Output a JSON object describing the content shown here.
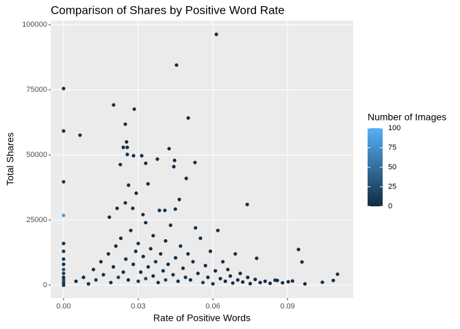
{
  "chart_data": {
    "type": "scatter",
    "title": "Comparison of Shares by Positive Word Rate",
    "x_label": "Rate of Positive Words",
    "y_label": "Total Shares",
    "xlim": [
      -0.0052,
      0.1164
    ],
    "ylim": [
      -5000,
      101600
    ],
    "xticks": [
      {
        "value": 0,
        "label": "0.00"
      },
      {
        "value": 0.03,
        "label": "0.03"
      },
      {
        "value": 0.06,
        "label": "0.06"
      },
      {
        "value": 0.09,
        "label": "0.09"
      }
    ],
    "yticks": [
      0,
      25000,
      50000,
      75000,
      100000
    ],
    "grid": true,
    "x": [
      0.0614,
      0.0454,
      0,
      0.0201,
      0.0284,
      0.0501,
      0,
      0.0066,
      0.0248,
      0.0253,
      0.0256,
      0.024,
      0.0314,
      0.0377,
      0.0424,
      0.0446,
      0.0528,
      0.0228,
      0.033,
      0.0281,
      0.0256,
      0.0443,
      0,
      0.0339,
      0.0493,
      0.0261,
      0,
      0.0738,
      0.0292,
      0.0248,
      0.0465,
      0.0215,
      0.0278,
      0.0385,
      0.0449,
      0.0407,
      0.0319,
      0.0184,
      0.0944,
      0.0958,
      0.0776,
      0.1101,
      0.1084,
      0.104,
      0.0859,
      0.0903,
      0,
      0,
      0,
      0,
      0,
      0,
      0,
      0,
      0,
      0,
      0.005,
      0.008,
      0.01,
      0.012,
      0.013,
      0.015,
      0.016,
      0.018,
      0.019,
      0.02,
      0.021,
      0.022,
      0.023,
      0.024,
      0.025,
      0.026,
      0.027,
      0.028,
      0.029,
      0.03,
      0.03,
      0.031,
      0.032,
      0.033,
      0.033,
      0.034,
      0.035,
      0.036,
      0.036,
      0.037,
      0.038,
      0.039,
      0.04,
      0.041,
      0.041,
      0.042,
      0.043,
      0.044,
      0.045,
      0.046,
      0.047,
      0.048,
      0.049,
      0.05,
      0.051,
      0.052,
      0.053,
      0.054,
      0.055,
      0.056,
      0.057,
      0.058,
      0.059,
      0.06,
      0.061,
      0.062,
      0.063,
      0.064,
      0.065,
      0.066,
      0.067,
      0.068,
      0.069,
      0.07,
      0.071,
      0.072,
      0.074,
      0.075,
      0.077,
      0.079,
      0.081,
      0.083,
      0.085,
      0.088,
      0.092,
      0.097
    ],
    "values": [
      96300,
      84500,
      75500,
      69200,
      67600,
      64200,
      59200,
      57600,
      61800,
      55000,
      52900,
      52900,
      49700,
      48400,
      52400,
      47900,
      47100,
      46300,
      46800,
      49700,
      50200,
      45500,
      39700,
      38900,
      41000,
      38400,
      26800,
      31000,
      35300,
      31600,
      32900,
      29500,
      29500,
      28700,
      29200,
      28700,
      27100,
      26100,
      13700,
      8900,
      10300,
      4200,
      1800,
      1100,
      1800,
      1300,
      0,
      1000,
      2000,
      3000,
      4500,
      6000,
      8000,
      10000,
      13000,
      16000,
      1500,
      3000,
      500,
      6000,
      2000,
      9000,
      4000,
      12000,
      1000,
      7000,
      15000,
      3000,
      18000,
      5000,
      10000,
      2000,
      21000,
      8000,
      13000,
      1500,
      16000,
      5000,
      11000,
      24000,
      2500,
      7000,
      14000,
      3500,
      19000,
      9000,
      1000,
      12000,
      5500,
      17000,
      2000,
      8000,
      23000,
      4000,
      10500,
      1500,
      15000,
      6500,
      3000,
      12000,
      2000,
      9000,
      22000,
      4500,
      18000,
      1000,
      7500,
      3000,
      13000,
      500,
      5500,
      21000,
      2500,
      9000,
      1500,
      6000,
      3500,
      800,
      12000,
      2000,
      4500,
      1200,
      3000,
      600,
      2200,
      1000,
      1500,
      700,
      1900,
      900,
      1600,
      500
    ],
    "color_values": [
      2,
      1,
      3,
      1,
      2,
      1,
      4,
      1,
      2,
      1,
      3,
      1,
      1,
      2,
      1,
      1,
      1,
      2,
      1,
      1,
      3,
      1,
      10,
      1,
      1,
      1,
      85,
      1,
      2,
      1,
      1,
      1,
      1,
      1,
      2,
      1,
      1,
      1,
      1,
      1,
      1,
      1,
      1,
      1,
      1,
      1,
      1,
      10,
      20,
      5,
      15,
      30,
      2,
      8,
      12,
      3,
      1,
      2,
      1,
      3,
      10,
      1,
      2,
      1,
      5,
      1,
      2,
      20,
      1,
      1,
      3,
      1,
      2,
      1,
      4,
      11,
      1,
      2,
      1,
      1,
      25,
      1,
      2,
      1,
      1,
      6,
      1,
      2,
      1,
      1,
      15,
      1,
      1,
      3,
      1,
      1,
      2,
      1,
      8,
      1,
      1,
      1,
      1,
      2,
      1,
      12,
      1,
      1,
      1,
      3,
      1,
      1,
      1,
      2,
      1,
      1,
      1,
      5,
      1,
      1,
      1,
      1,
      1,
      2,
      1,
      1,
      1,
      1,
      1,
      1,
      1,
      1
    ],
    "colorbar": {
      "title": "Number of Images",
      "lim": [
        0,
        100
      ],
      "ticks": [
        0,
        25,
        50,
        75,
        100
      ],
      "low": "#132B43",
      "high": "#56B1F7"
    }
  }
}
